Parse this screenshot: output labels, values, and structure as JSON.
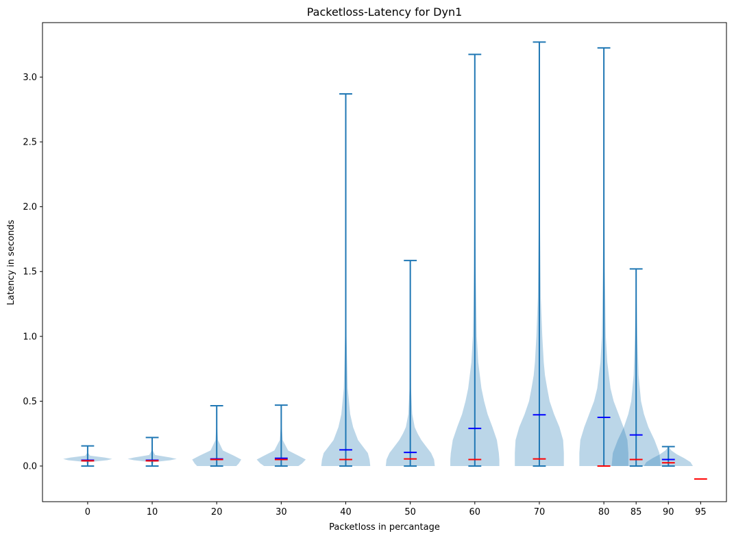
{
  "chart_data": {
    "type": "violin",
    "title": "Packetloss-Latency for Dyn1",
    "xlabel": "Packetloss in percantage",
    "ylabel": "Latency in seconds",
    "xlim": [
      -7,
      99
    ],
    "ylim": [
      -0.275,
      3.42
    ],
    "x_ticks": [
      0,
      10,
      20,
      30,
      40,
      50,
      60,
      70,
      80,
      85,
      90,
      95
    ],
    "x_tick_labels": [
      "0",
      "10",
      "20",
      "30",
      "40",
      "50",
      "60",
      "70",
      "80",
      "85",
      "90",
      "95"
    ],
    "y_ticks": [
      0.0,
      0.5,
      1.0,
      1.5,
      2.0,
      2.5,
      3.0
    ],
    "y_tick_labels": [
      "0.0",
      "0.5",
      "1.0",
      "1.5",
      "2.0",
      "2.5",
      "3.0"
    ],
    "grid": false,
    "colors": {
      "body_fill": "#1f77b4",
      "body_alpha": 0.3,
      "whisker": "#1f77b4",
      "mean": "#0000ff",
      "median": "#ff0000"
    },
    "violins": [
      {
        "x": 0,
        "min": 0.0,
        "max": 0.155,
        "mean": 0.045,
        "median": 0.04,
        "profile": [
          [
            0.0,
            0.0
          ],
          [
            0.03,
            0.05
          ],
          [
            0.045,
            0.8
          ],
          [
            0.055,
            1.0
          ],
          [
            0.065,
            0.7
          ],
          [
            0.08,
            0.1
          ],
          [
            0.1,
            0.02
          ],
          [
            0.155,
            0.0
          ]
        ]
      },
      {
        "x": 10,
        "min": 0.0,
        "max": 0.22,
        "mean": 0.045,
        "median": 0.04,
        "profile": [
          [
            0.0,
            0.0
          ],
          [
            0.03,
            0.06
          ],
          [
            0.045,
            0.75
          ],
          [
            0.055,
            1.0
          ],
          [
            0.065,
            0.75
          ],
          [
            0.085,
            0.12
          ],
          [
            0.12,
            0.02
          ],
          [
            0.22,
            0.0
          ]
        ]
      },
      {
        "x": 20,
        "min": 0.0,
        "max": 0.465,
        "mean": 0.055,
        "median": 0.05,
        "profile": [
          [
            0.0,
            0.8
          ],
          [
            0.02,
            0.9
          ],
          [
            0.05,
            1.0
          ],
          [
            0.08,
            0.7
          ],
          [
            0.12,
            0.25
          ],
          [
            0.2,
            0.05
          ],
          [
            0.3,
            0.02
          ],
          [
            0.465,
            0.0
          ]
        ]
      },
      {
        "x": 30,
        "min": 0.0,
        "max": 0.47,
        "mean": 0.06,
        "median": 0.05,
        "profile": [
          [
            0.0,
            0.7
          ],
          [
            0.02,
            0.85
          ],
          [
            0.05,
            1.0
          ],
          [
            0.08,
            0.7
          ],
          [
            0.12,
            0.28
          ],
          [
            0.2,
            0.06
          ],
          [
            0.3,
            0.02
          ],
          [
            0.47,
            0.0
          ]
        ]
      },
      {
        "x": 40,
        "min": 0.0,
        "max": 2.87,
        "mean": 0.125,
        "median": 0.05,
        "profile": [
          [
            0.0,
            1.0
          ],
          [
            0.05,
            0.97
          ],
          [
            0.1,
            0.9
          ],
          [
            0.15,
            0.7
          ],
          [
            0.2,
            0.5
          ],
          [
            0.3,
            0.3
          ],
          [
            0.4,
            0.18
          ],
          [
            0.6,
            0.08
          ],
          [
            1.0,
            0.03
          ],
          [
            2.0,
            0.01
          ],
          [
            2.87,
            0.0
          ]
        ]
      },
      {
        "x": 50,
        "min": 0.0,
        "max": 1.585,
        "mean": 0.105,
        "median": 0.055,
        "profile": [
          [
            0.0,
            1.0
          ],
          [
            0.05,
            0.97
          ],
          [
            0.1,
            0.85
          ],
          [
            0.15,
            0.65
          ],
          [
            0.2,
            0.45
          ],
          [
            0.25,
            0.3
          ],
          [
            0.3,
            0.18
          ],
          [
            0.4,
            0.08
          ],
          [
            0.6,
            0.03
          ],
          [
            1.0,
            0.01
          ],
          [
            1.585,
            0.0
          ]
        ]
      },
      {
        "x": 60,
        "min": 0.0,
        "max": 3.175,
        "mean": 0.29,
        "median": 0.05,
        "profile": [
          [
            0.0,
            1.0
          ],
          [
            0.05,
            1.0
          ],
          [
            0.1,
            0.98
          ],
          [
            0.2,
            0.9
          ],
          [
            0.3,
            0.72
          ],
          [
            0.4,
            0.52
          ],
          [
            0.5,
            0.38
          ],
          [
            0.6,
            0.27
          ],
          [
            0.8,
            0.14
          ],
          [
            1.0,
            0.08
          ],
          [
            1.5,
            0.04
          ],
          [
            2.0,
            0.02
          ],
          [
            3.175,
            0.0
          ]
        ]
      },
      {
        "x": 70,
        "min": 0.0,
        "max": 3.27,
        "mean": 0.395,
        "median": 0.055,
        "profile": [
          [
            0.0,
            1.0
          ],
          [
            0.1,
            1.0
          ],
          [
            0.2,
            0.97
          ],
          [
            0.3,
            0.82
          ],
          [
            0.4,
            0.6
          ],
          [
            0.5,
            0.42
          ],
          [
            0.6,
            0.32
          ],
          [
            0.7,
            0.23
          ],
          [
            0.8,
            0.18
          ],
          [
            1.0,
            0.12
          ],
          [
            1.3,
            0.06
          ],
          [
            1.8,
            0.03
          ],
          [
            3.27,
            0.0
          ]
        ]
      },
      {
        "x": 80,
        "min": 0.0,
        "max": 3.225,
        "mean": 0.375,
        "median": 0.0,
        "profile": [
          [
            0.0,
            1.0
          ],
          [
            0.1,
            1.0
          ],
          [
            0.2,
            0.96
          ],
          [
            0.3,
            0.8
          ],
          [
            0.4,
            0.6
          ],
          [
            0.5,
            0.4
          ],
          [
            0.6,
            0.27
          ],
          [
            0.8,
            0.14
          ],
          [
            1.0,
            0.08
          ],
          [
            1.5,
            0.04
          ],
          [
            2.0,
            0.02
          ],
          [
            3.225,
            0.0
          ]
        ]
      },
      {
        "x": 85,
        "min": 0.0,
        "max": 1.52,
        "mean": 0.24,
        "median": 0.05,
        "profile": [
          [
            0.0,
            1.0
          ],
          [
            0.1,
            0.95
          ],
          [
            0.2,
            0.75
          ],
          [
            0.3,
            0.5
          ],
          [
            0.4,
            0.32
          ],
          [
            0.5,
            0.2
          ],
          [
            0.7,
            0.1
          ],
          [
            1.0,
            0.05
          ],
          [
            1.52,
            0.0
          ]
        ]
      },
      {
        "x": 90,
        "min": 0.0,
        "max": 0.15,
        "mean": 0.05,
        "median": 0.025,
        "profile": [
          [
            0.0,
            1.0
          ],
          [
            0.03,
            0.9
          ],
          [
            0.06,
            0.65
          ],
          [
            0.09,
            0.35
          ],
          [
            0.12,
            0.12
          ],
          [
            0.15,
            0.0
          ]
        ]
      },
      {
        "x": 95,
        "median": -0.1
      }
    ]
  }
}
